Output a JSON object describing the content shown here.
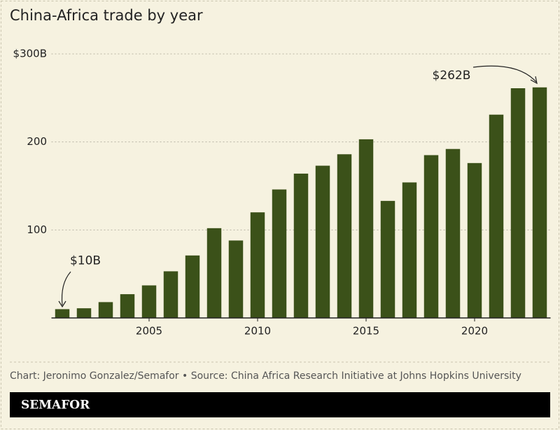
{
  "chart_data": {
    "type": "bar",
    "title": "China-Africa trade by year",
    "x": [
      2001,
      2002,
      2003,
      2004,
      2005,
      2006,
      2007,
      2008,
      2009,
      2010,
      2011,
      2012,
      2013,
      2014,
      2015,
      2016,
      2017,
      2018,
      2019,
      2020,
      2021,
      2022,
      2023
    ],
    "values": [
      10,
      11,
      18,
      27,
      37,
      53,
      71,
      102,
      88,
      120,
      146,
      164,
      173,
      186,
      203,
      133,
      154,
      185,
      192,
      176,
      231,
      261,
      262
    ],
    "value_labels": [
      "$10B",
      null,
      null,
      null,
      null,
      null,
      null,
      null,
      null,
      null,
      null,
      null,
      null,
      null,
      null,
      null,
      null,
      null,
      null,
      null,
      null,
      null,
      "$262B"
    ],
    "color": "#3b5119",
    "xlim": [
      2000.5,
      2023.5
    ],
    "xticks": [
      2005,
      2010,
      2015,
      2020
    ],
    "ylim": [
      0,
      300
    ],
    "yticks": [
      {
        "value": 300,
        "label": "$300B"
      },
      200,
      100
    ],
    "grid": true,
    "source": "Chart: Jeronimo Gonzalez/Semafor • Source: China Africa Research Initiative at Johns Hopkins University",
    "brand": "SEMAFOR"
  }
}
